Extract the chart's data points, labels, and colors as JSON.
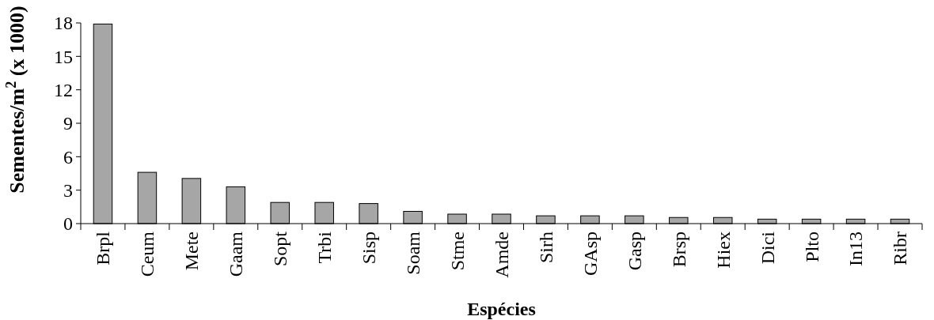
{
  "chart_data": {
    "type": "bar",
    "xlabel": "Espécies",
    "ylabel": "Sementes/m$^{2}$ (x 1000)",
    "categories": [
      "Brpl",
      "Ceum",
      "Mete",
      "Gaam",
      "Sopt",
      "Trbi",
      "Sisp",
      "Soam",
      "Stme",
      "Amde",
      "Sirh",
      "GAsp",
      "Gasp",
      "Brsp",
      "Hiex",
      "Dici",
      "Plto",
      "In13",
      "Ribr"
    ],
    "values": [
      17.9,
      4.6,
      4.05,
      3.3,
      1.9,
      1.9,
      1.8,
      1.1,
      0.85,
      0.85,
      0.7,
      0.7,
      0.7,
      0.55,
      0.55,
      0.4,
      0.4,
      0.4,
      0.4
    ],
    "color": "#a6a6a6",
    "ylim": [
      0,
      18
    ],
    "yticks": [
      0,
      3,
      6,
      9,
      12,
      15,
      18
    ],
    "grid": false
  }
}
